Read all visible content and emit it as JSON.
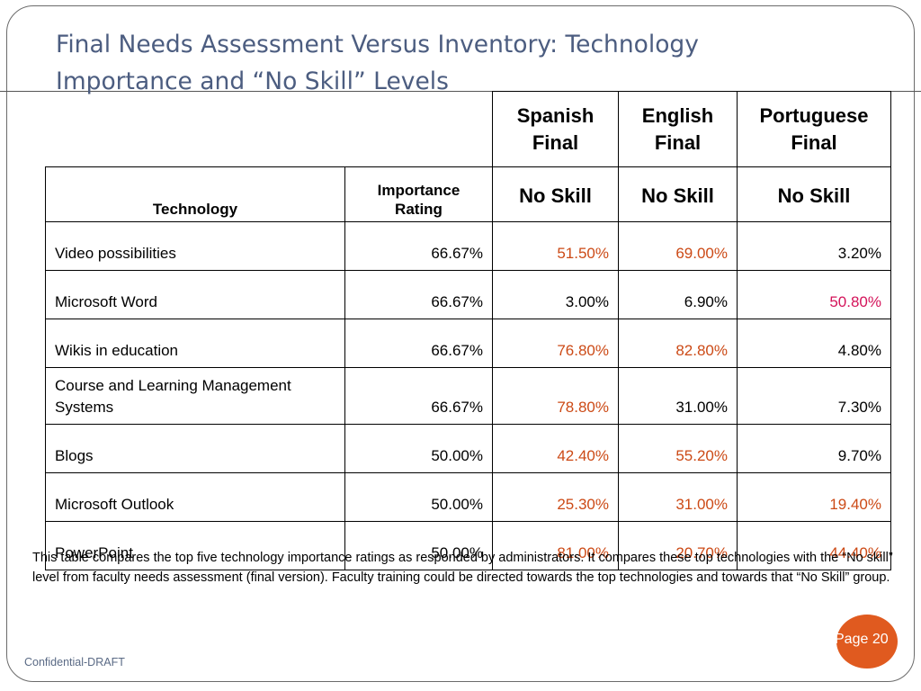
{
  "slide": {
    "title": "Final Needs Assessment Versus Inventory: Technology Importance and “No Skill” Levels",
    "footer": "Confidential-DRAFT",
    "page_label": "Page 20"
  },
  "colors": {
    "highlight_orange": "#cc4a16",
    "highlight_pink": "#d4145a",
    "title": "#4c5d80",
    "page_badge": "#e05a1f"
  },
  "table": {
    "groups": {
      "spanish": "Spanish Final",
      "english": "English Final",
      "portuguese": "Portuguese Final"
    },
    "subheaders": {
      "technology": "Technology",
      "importance": "Importance Rating",
      "spanish": "No Skill",
      "english": "No Skill",
      "portuguese": "No Skill"
    },
    "rows": [
      {
        "technology": "Video possibilities",
        "importance": "66.67%",
        "spanish": "51.50%",
        "english": "69.00%",
        "portuguese": "3.20%"
      },
      {
        "technology": "Microsoft Word",
        "importance": "66.67%",
        "spanish": "3.00%",
        "english": "6.90%",
        "portuguese": "50.80%"
      },
      {
        "technology": "Wikis in education",
        "importance": "66.67%",
        "spanish": "76.80%",
        "english": "82.80%",
        "portuguese": "4.80%"
      },
      {
        "technology": "Course and Learning Management Systems",
        "importance": "66.67%",
        "spanish": "78.80%",
        "english": "31.00%",
        "portuguese": "7.30%"
      },
      {
        "technology": "Blogs",
        "importance": "50.00%",
        "spanish": "42.40%",
        "english": "55.20%",
        "portuguese": "9.70%"
      },
      {
        "technology": "Microsoft Outlook",
        "importance": "50.00%",
        "spanish": "25.30%",
        "english": "31.00%",
        "portuguese": "19.40%"
      },
      {
        "technology": "PowerPoint",
        "importance": "50.00%",
        "spanish": "81.00%",
        "english": "20.70%",
        "portuguese": "44.40%"
      }
    ]
  },
  "note": "This table compares the top five technology importance ratings as responded by administrators.  It compares these top technologies with the “No skill” level from faculty needs assessment (final version).  Faculty training could be directed towards the top technologies and towards that “No Skill” group."
}
